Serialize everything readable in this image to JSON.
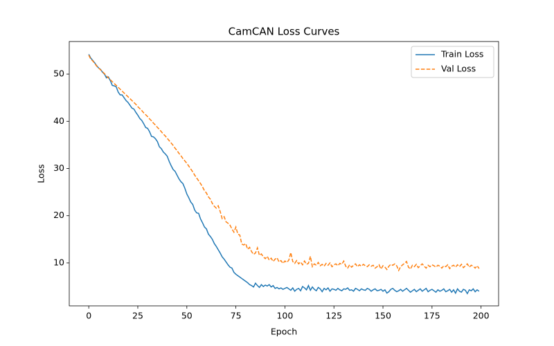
{
  "chart_data": {
    "type": "line",
    "title": "CamCAN Loss Curves",
    "x_label": "Epoch",
    "y_label": "Loss",
    "x": [
      0,
      1,
      2,
      3,
      4,
      5,
      6,
      7,
      8,
      9,
      10,
      11,
      12,
      13,
      14,
      15,
      16,
      17,
      18,
      19,
      20,
      21,
      22,
      23,
      24,
      25,
      26,
      27,
      28,
      29,
      30,
      31,
      32,
      33,
      34,
      35,
      36,
      37,
      38,
      39,
      40,
      41,
      42,
      43,
      44,
      45,
      46,
      47,
      48,
      49,
      50,
      51,
      52,
      53,
      54,
      55,
      56,
      57,
      58,
      59,
      60,
      61,
      62,
      63,
      64,
      65,
      66,
      67,
      68,
      69,
      70,
      71,
      72,
      73,
      74,
      75,
      76,
      77,
      78,
      79,
      80,
      81,
      82,
      83,
      84,
      85,
      86,
      87,
      88,
      89,
      90,
      91,
      92,
      93,
      94,
      95,
      96,
      97,
      98,
      99,
      100,
      101,
      102,
      103,
      104,
      105,
      106,
      107,
      108,
      109,
      110,
      111,
      112,
      113,
      114,
      115,
      116,
      117,
      118,
      119,
      120,
      121,
      122,
      123,
      124,
      125,
      126,
      127,
      128,
      129,
      130,
      131,
      132,
      133,
      134,
      135,
      136,
      137,
      138,
      139,
      140,
      141,
      142,
      143,
      144,
      145,
      146,
      147,
      148,
      149,
      150,
      151,
      152,
      153,
      154,
      155,
      156,
      157,
      158,
      159,
      160,
      161,
      162,
      163,
      164,
      165,
      166,
      167,
      168,
      169,
      170,
      171,
      172,
      173,
      174,
      175,
      176,
      177,
      178,
      179,
      180,
      181,
      182,
      183,
      184,
      185,
      186,
      187,
      188,
      189,
      190,
      191,
      192,
      193,
      194,
      195,
      196,
      197,
      198,
      199
    ],
    "series": [
      {
        "name": "Train Loss",
        "color": "#1f77b4",
        "linestyle": "solid",
        "values": [
          54.2,
          53.4,
          52.9,
          52.4,
          51.8,
          51.3,
          51.0,
          50.4,
          50.0,
          49.2,
          49.4,
          48.6,
          47.6,
          47.5,
          47.3,
          46.2,
          45.6,
          45.6,
          45.0,
          44.4,
          44.0,
          43.4,
          42.8,
          42.6,
          41.9,
          41.3,
          40.6,
          40.2,
          39.5,
          38.7,
          38.5,
          37.8,
          36.8,
          36.7,
          36.3,
          35.7,
          34.6,
          34.2,
          33.5,
          33.1,
          32.6,
          31.5,
          30.6,
          29.8,
          29.4,
          28.6,
          27.8,
          27.2,
          26.8,
          25.8,
          24.6,
          23.8,
          22.9,
          22.4,
          21.2,
          20.6,
          20.5,
          19.3,
          18.5,
          17.6,
          17.2,
          16.1,
          15.6,
          15.0,
          14.1,
          13.5,
          12.8,
          12.1,
          11.3,
          10.8,
          10.2,
          9.6,
          9.1,
          8.9,
          8.0,
          7.6,
          7.3,
          7.0,
          6.7,
          6.4,
          6.1,
          5.8,
          5.4,
          5.2,
          4.9,
          5.7,
          5.2,
          4.8,
          5.4,
          5.0,
          5.3,
          5.1,
          5.4,
          4.9,
          5.2,
          4.6,
          4.8,
          4.5,
          4.7,
          4.4,
          4.6,
          4.8,
          4.5,
          4.2,
          4.7,
          4.0,
          4.4,
          4.6,
          4.1,
          5.0,
          4.7,
          4.3,
          5.2,
          4.2,
          4.9,
          4.4,
          4.1,
          4.8,
          4.5,
          3.9,
          4.6,
          4.3,
          4.7,
          4.0,
          4.5,
          4.4,
          4.2,
          4.6,
          4.3,
          4.1,
          4.5,
          4.4,
          4.7,
          4.2,
          4.3,
          4.0,
          4.6,
          4.4,
          4.1,
          4.5,
          4.3,
          4.2,
          4.6,
          4.4,
          4.0,
          4.3,
          4.5,
          4.1,
          4.2,
          4.4,
          4.0,
          4.3,
          3.6,
          3.9,
          4.4,
          4.6,
          4.2,
          3.9,
          4.1,
          4.4,
          4.0,
          4.3,
          4.6,
          4.2,
          3.8,
          4.1,
          4.4,
          3.9,
          4.2,
          4.5,
          4.0,
          4.3,
          4.6,
          3.9,
          4.2,
          4.4,
          4.1,
          3.8,
          4.3,
          4.0,
          4.2,
          4.5,
          3.9,
          4.1,
          4.4,
          3.8,
          4.3,
          3.6,
          4.5,
          4.0,
          3.8,
          4.4,
          4.2,
          3.5,
          4.3,
          4.1,
          4.5,
          3.9,
          4.3,
          4.0
        ]
      },
      {
        "name": "Val Loss",
        "color": "#ff7f0e",
        "linestyle": "dashed",
        "values": [
          54.0,
          53.2,
          52.8,
          52.3,
          51.7,
          51.3,
          50.9,
          50.5,
          50.1,
          49.6,
          49.2,
          48.8,
          48.4,
          48.0,
          47.6,
          47.2,
          46.8,
          46.4,
          46.0,
          45.6,
          45.2,
          44.8,
          44.4,
          44.0,
          43.6,
          43.1,
          42.7,
          42.3,
          41.8,
          41.4,
          41.0,
          40.5,
          40.1,
          39.6,
          39.2,
          38.7,
          38.3,
          37.8,
          37.3,
          36.9,
          36.4,
          35.9,
          35.4,
          34.9,
          34.3,
          33.8,
          33.2,
          32.7,
          32.1,
          31.6,
          31.1,
          30.5,
          29.9,
          29.3,
          28.6,
          28.0,
          27.4,
          26.8,
          26.1,
          25.3,
          24.8,
          24.0,
          23.5,
          22.6,
          22.0,
          21.6,
          22.1,
          20.9,
          19.4,
          19.8,
          18.7,
          18.4,
          18.0,
          17.2,
          16.5,
          17.6,
          16.1,
          15.9,
          14.0,
          13.8,
          14.1,
          12.9,
          13.3,
          12.4,
          11.8,
          12.1,
          13.2,
          11.6,
          11.9,
          11.3,
          10.9,
          11.4,
          10.6,
          11.0,
          10.3,
          10.8,
          11.1,
          10.2,
          10.5,
          9.9,
          10.4,
          10.1,
          10.6,
          12.2,
          10.3,
          9.9,
          10.5,
          9.8,
          10.2,
          9.6,
          10.4,
          9.7,
          9.9,
          11.4,
          9.2,
          9.8,
          9.5,
          10.1,
          9.4,
          9.7,
          9.3,
          9.9,
          9.5,
          10.0,
          9.2,
          9.6,
          9.8,
          9.4,
          9.9,
          9.7,
          10.4,
          9.3,
          8.9,
          9.6,
          9.1,
          9.5,
          9.8,
          9.2,
          9.6,
          9.3,
          9.7,
          9.4,
          9.2,
          9.6,
          9.3,
          9.5,
          8.9,
          9.2,
          9.6,
          8.7,
          9.4,
          9.1,
          8.6,
          9.3,
          9.7,
          9.5,
          9.8,
          9.4,
          8.4,
          9.2,
          9.6,
          9.9,
          10.3,
          9.1,
          8.7,
          9.5,
          9.2,
          9.7,
          9.0,
          9.4,
          9.8,
          9.3,
          8.9,
          9.5,
          9.2,
          9.6,
          9.4,
          9.1,
          9.5,
          9.3,
          8.9,
          9.4,
          9.2,
          9.6,
          8.8,
          9.3,
          9.5,
          9.1,
          9.6,
          9.2,
          9.7,
          9.0,
          9.4,
          9.8,
          9.1,
          9.5,
          9.3,
          8.9,
          9.4,
          8.8
        ]
      }
    ],
    "xlim": [
      -9.95,
      208.95
    ],
    "xticks": [
      0,
      25,
      50,
      75,
      100,
      125,
      150,
      175,
      200
    ],
    "ylim": [
      0.9,
      56.9
    ],
    "yticks": [
      10,
      20,
      30,
      40,
      50
    ],
    "grid": false,
    "legend": "upper right"
  }
}
